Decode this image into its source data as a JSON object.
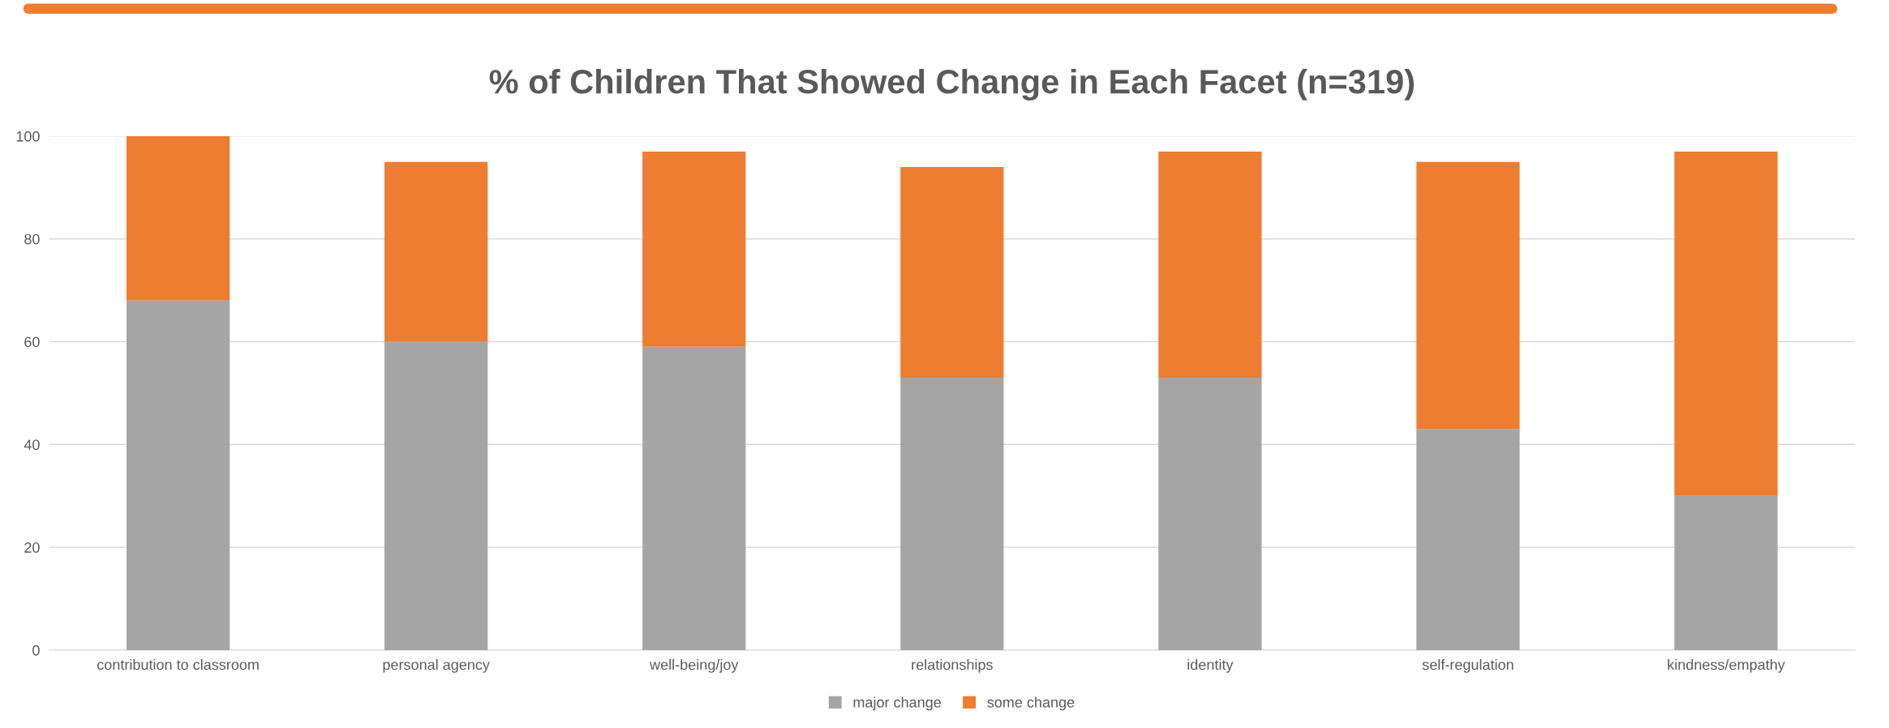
{
  "chart_data": {
    "type": "bar",
    "title": "% of Children That Showed Change in Each Facet (n=319)",
    "categories": [
      "contribution to classroom",
      "personal agency",
      "well-being/joy",
      "relationships",
      "identity",
      "self-regulation",
      "kindness/empathy"
    ],
    "stacked": true,
    "series": [
      {
        "name": "major change",
        "color": "#a5a5a5",
        "values": [
          68,
          60,
          59,
          53,
          53,
          43,
          30
        ]
      },
      {
        "name": "some change",
        "color": "#ed7d31",
        "values": [
          32,
          35,
          38,
          41,
          44,
          52,
          67
        ]
      }
    ],
    "ylim": [
      0,
      100
    ],
    "yticks": [
      0,
      20,
      40,
      60,
      80,
      100
    ],
    "grid": "y",
    "legend": "bottom"
  }
}
